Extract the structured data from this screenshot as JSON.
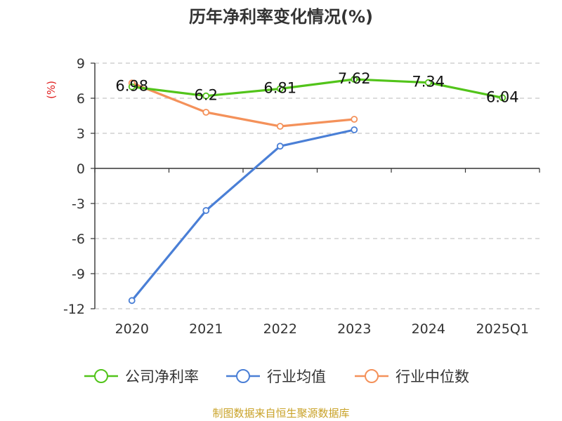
{
  "chart_data": {
    "type": "line",
    "title": "历年净利率变化情况(%)",
    "ylabel": "(%)",
    "categories": [
      "2020",
      "2021",
      "2022",
      "2023",
      "2024",
      "2025Q1"
    ],
    "ylim": [
      -12,
      9
    ],
    "yticks": [
      9,
      6,
      3,
      0,
      -3,
      -6,
      -9,
      -12
    ],
    "grid": true,
    "legend_position": "bottom",
    "series": [
      {
        "name": "公司净利率",
        "color": "#52c41a",
        "values": [
          6.98,
          6.2,
          6.81,
          7.62,
          7.34,
          6.04
        ],
        "labels": [
          "6.98",
          "6.2",
          "6.81",
          "7.62",
          "7.34",
          "6.04"
        ]
      },
      {
        "name": "行业均值",
        "color": "#4a7fd6",
        "values": [
          -11.3,
          -3.6,
          1.9,
          3.3,
          null,
          null
        ]
      },
      {
        "name": "行业中位数",
        "color": "#f4915a",
        "values": [
          7.3,
          4.8,
          3.6,
          4.2,
          null,
          null
        ]
      }
    ]
  },
  "source": "制图数据来自恒生聚源数据库"
}
